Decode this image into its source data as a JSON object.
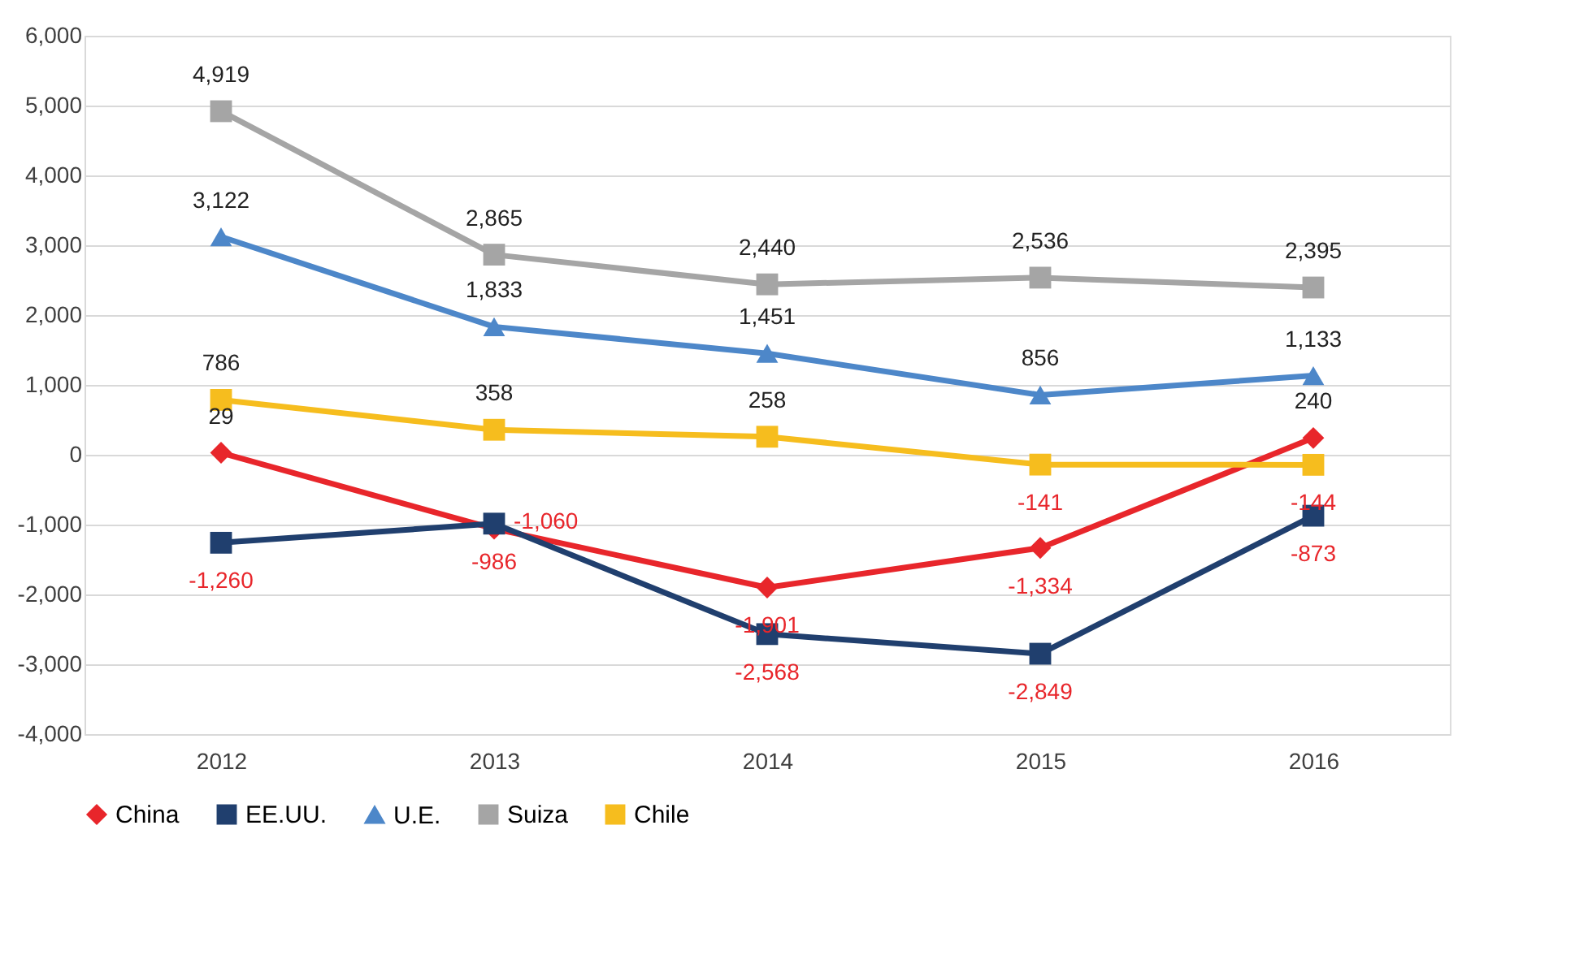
{
  "chart_data": {
    "type": "line",
    "categories": [
      "2012",
      "2013",
      "2014",
      "2015",
      "2016"
    ],
    "series": [
      {
        "name": "China",
        "color": "#e8262b",
        "marker": "diamond",
        "values": [
          29,
          -1060,
          -1901,
          -1334,
          240
        ],
        "value_labels": [
          "29",
          "-1,060",
          "-1,901",
          "-1,334",
          "240"
        ]
      },
      {
        "name": "EE.UU.",
        "color": "#203f6e",
        "marker": "square",
        "values": [
          -1260,
          -986,
          -2568,
          -2849,
          -873
        ],
        "value_labels": [
          "-1,260",
          "-986",
          "-2,568",
          "-2,849",
          "-873"
        ]
      },
      {
        "name": "U.E.",
        "color": "#4d87c9",
        "marker": "triangle",
        "values": [
          3122,
          1833,
          1451,
          856,
          1133
        ],
        "value_labels": [
          "3,122",
          "1,833",
          "1,451",
          "856",
          "1,133"
        ]
      },
      {
        "name": "Suiza",
        "color": "#a5a5a5",
        "marker": "square",
        "values": [
          4919,
          2865,
          2440,
          2536,
          2395
        ],
        "value_labels": [
          "4,919",
          "2,865",
          "2,440",
          "2,536",
          "2,395"
        ]
      },
      {
        "name": "Chile",
        "color": "#f6bd1e",
        "marker": "square",
        "values": [
          786,
          358,
          258,
          -141,
          -144
        ],
        "value_labels": [
          "786",
          "358",
          "258",
          "-141",
          "-144"
        ]
      }
    ],
    "ylim": [
      -4000,
      6000
    ],
    "yticks": [
      {
        "value": -4000,
        "label": "-4,000"
      },
      {
        "value": -3000,
        "label": "-3,000"
      },
      {
        "value": -2000,
        "label": "-2,000"
      },
      {
        "value": -1000,
        "label": "-1,000"
      },
      0,
      {
        "value": 1000,
        "label": "1,000"
      },
      {
        "value": 2000,
        "label": "2,000"
      },
      {
        "value": 3000,
        "label": "3,000"
      },
      {
        "value": 4000,
        "label": "4,000"
      },
      {
        "value": 5000,
        "label": "5,000"
      },
      {
        "value": 6000,
        "label": "6,000"
      }
    ],
    "grid": "y",
    "legend": "bottom",
    "line_style": "solid",
    "data_labels": true
  }
}
